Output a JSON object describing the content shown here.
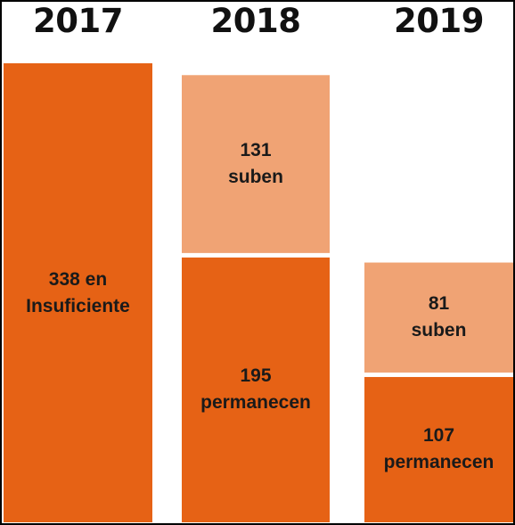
{
  "chart_data": {
    "type": "bar",
    "stacked": true,
    "categories": [
      "2017",
      "2018",
      "2019"
    ],
    "series": [
      {
        "key": "base",
        "color": "#E66215",
        "values": [
          338,
          195,
          107
        ],
        "labels": [
          [
            "338 en",
            "Insuficiente"
          ],
          [
            "195",
            "permanecen"
          ],
          [
            "107",
            "permanecen"
          ]
        ]
      },
      {
        "key": "suben",
        "color": "#F0A374",
        "values": [
          0,
          131,
          81
        ],
        "labels": [
          [],
          [
            "131",
            "suben"
          ],
          [
            "81",
            "suben"
          ]
        ]
      }
    ],
    "grid": false,
    "legend": "none"
  }
}
